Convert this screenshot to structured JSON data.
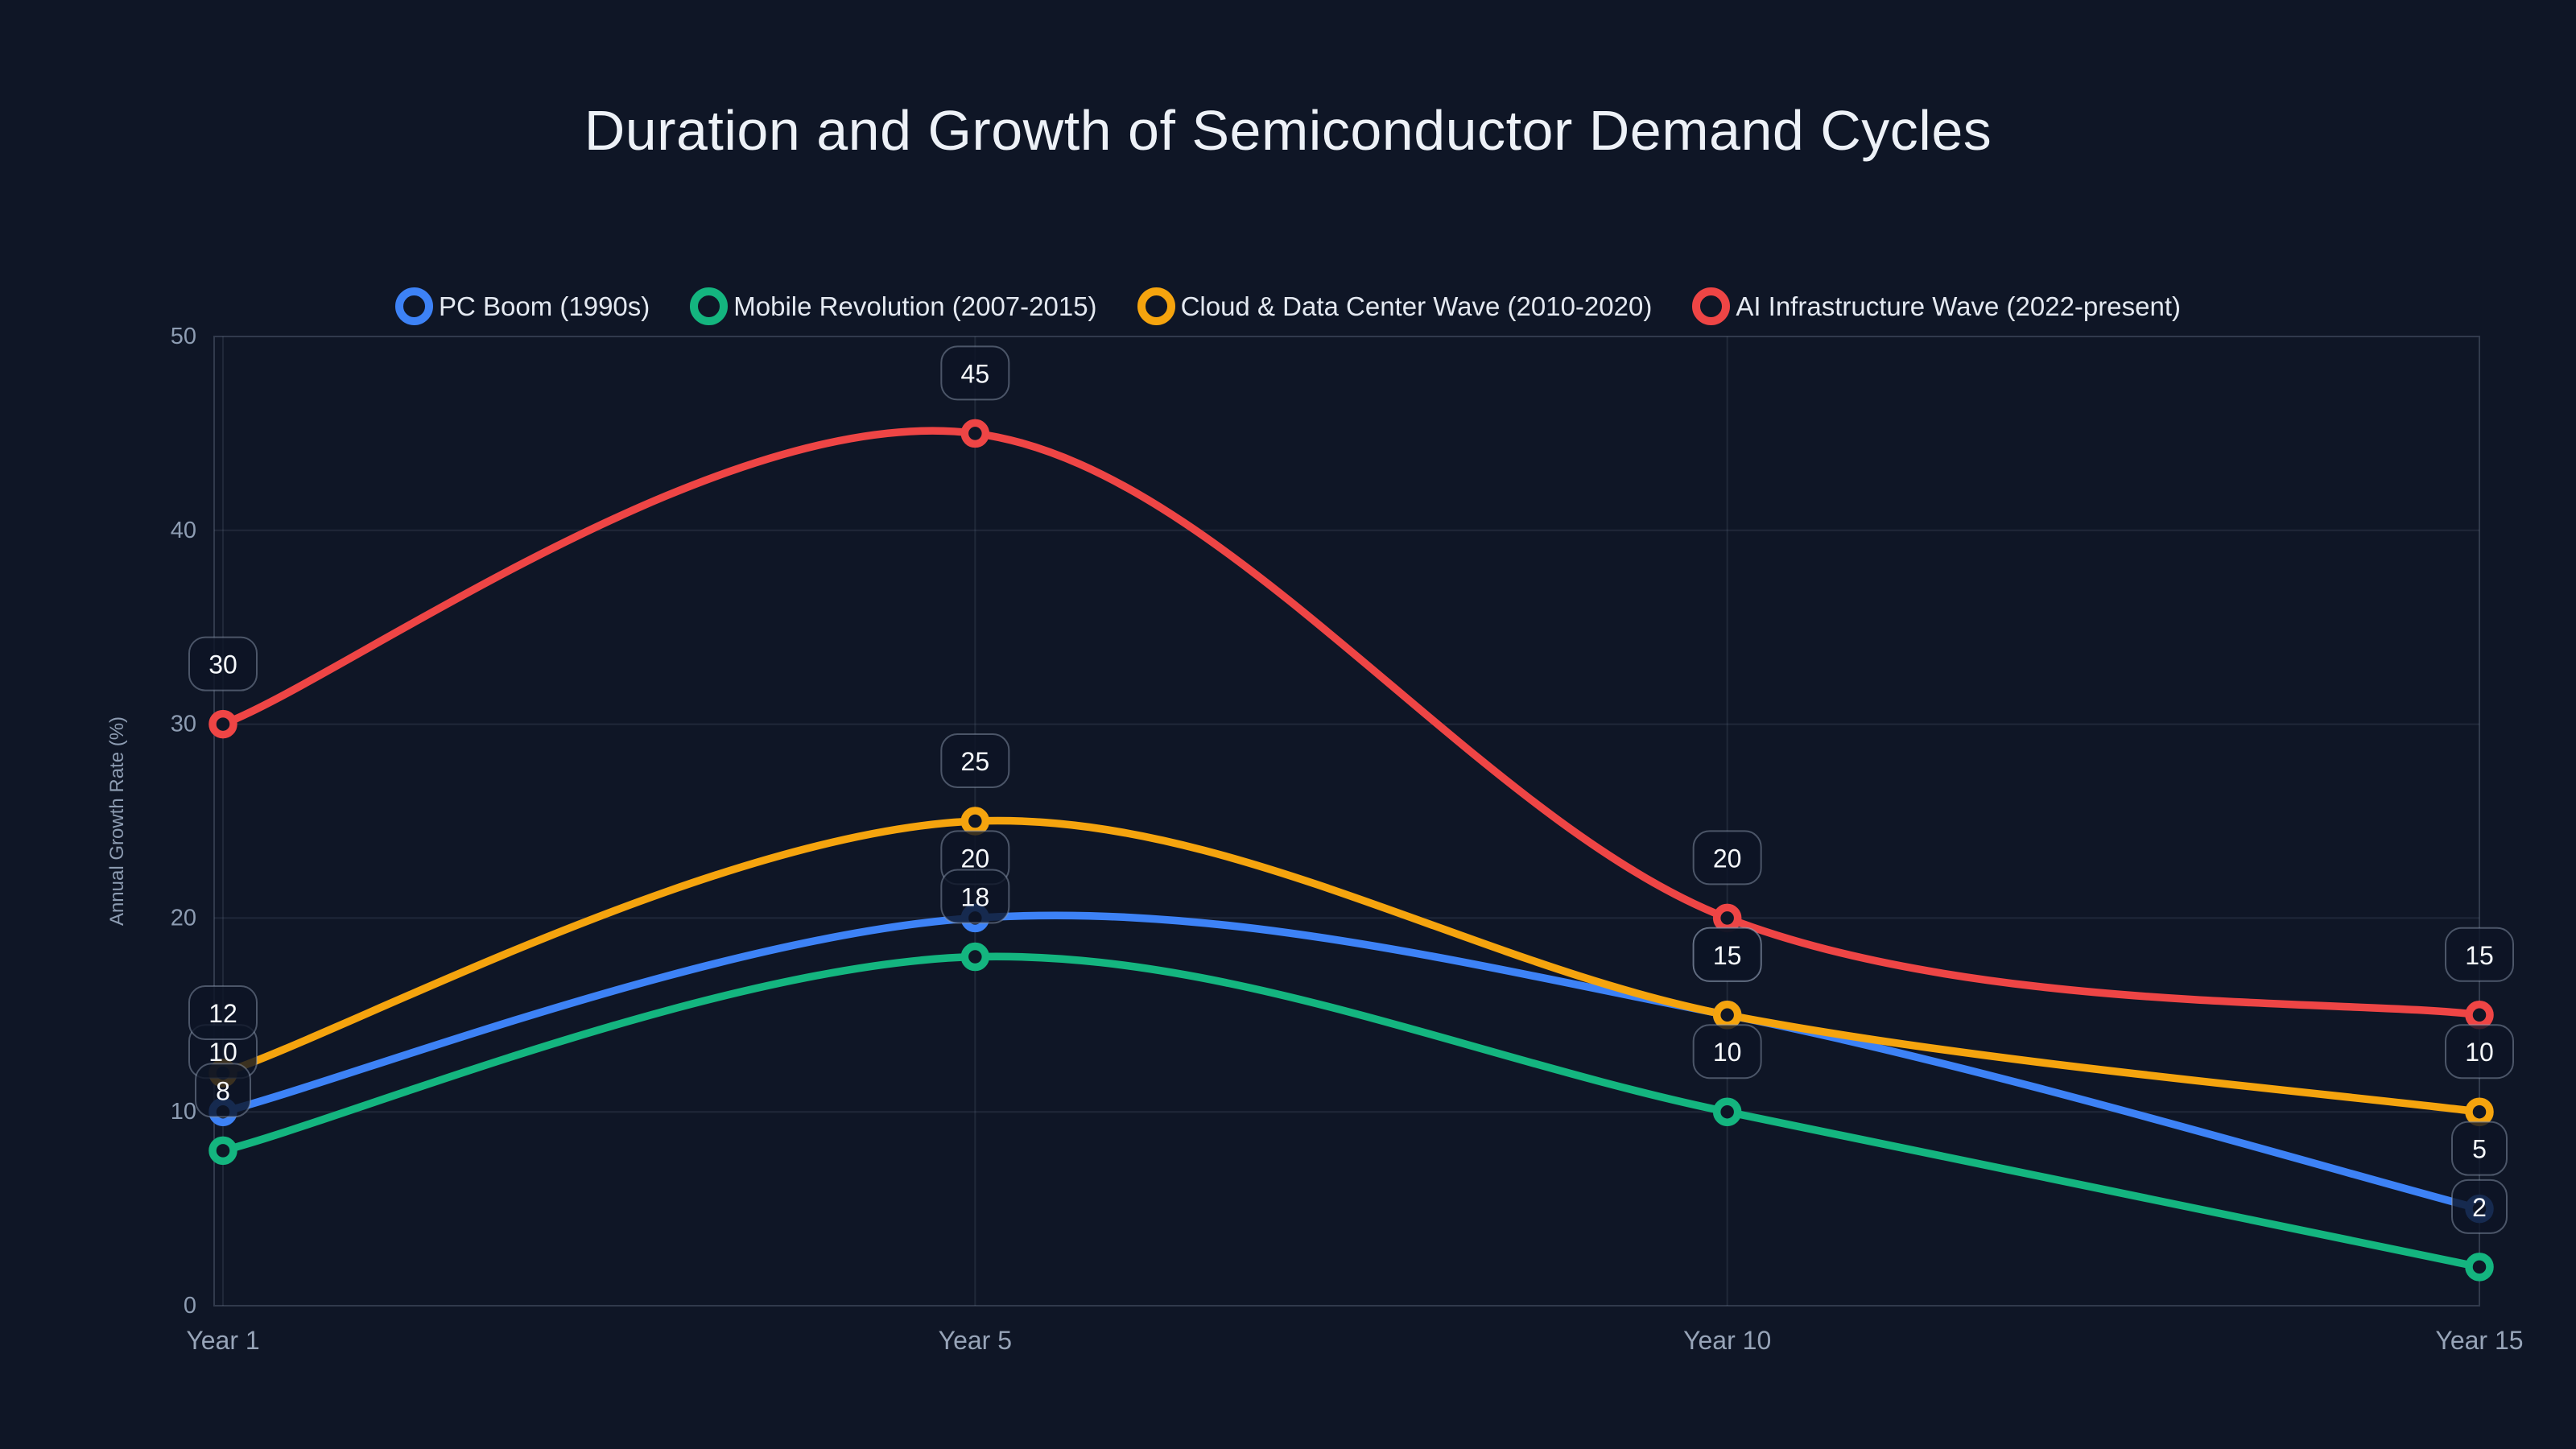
{
  "title": "Duration and Growth of Semiconductor Demand Cycles",
  "theme": {
    "background": "#0f1626",
    "grid_line": "rgba(148,163,184,0.13)",
    "plot_border": "rgba(148,163,184,0.26)",
    "tick_text": "#8d9cb2",
    "x_tick_text": "#97a4b8",
    "title_text": "#edf1f7",
    "legend_text": "#e4e9f1",
    "label_box_fill": "rgba(13,20,38,0.8)",
    "label_box_border": "rgba(151,163,186,0.45)",
    "label_text": "#f6f9fc"
  },
  "chart_data": {
    "type": "line",
    "title": "Duration and Growth of Semiconductor Demand Cycles",
    "categories": [
      "Year 1",
      "Year 5",
      "Year 10",
      "Year 15"
    ],
    "series": [
      {
        "id": "pc-boom",
        "name": "PC Boom (1990s)",
        "color": "#3d82f6",
        "values": [
          10,
          20,
          15,
          5
        ]
      },
      {
        "id": "mobile-revolution",
        "name": "Mobile Revolution (2007-2015)",
        "color": "#14b57f",
        "values": [
          8,
          18,
          10,
          2
        ]
      },
      {
        "id": "cloud-data-center",
        "name": "Cloud & Data Center Wave (2010-2020)",
        "color": "#f5a40e",
        "values": [
          12,
          25,
          15,
          10
        ]
      },
      {
        "id": "ai-infrastructure",
        "name": "AI Infrastructure Wave (2022-present)",
        "color": "#ee4545",
        "values": [
          30,
          45,
          20,
          15
        ]
      }
    ],
    "xlabel": "",
    "ylabel": "Annual Growth Rate (%)",
    "ylim": [
      0,
      50
    ],
    "y_ticks": [
      0,
      10,
      20,
      30,
      40,
      50
    ],
    "grid": true,
    "legend_position": "top",
    "smooth": true,
    "point_labels": true
  }
}
